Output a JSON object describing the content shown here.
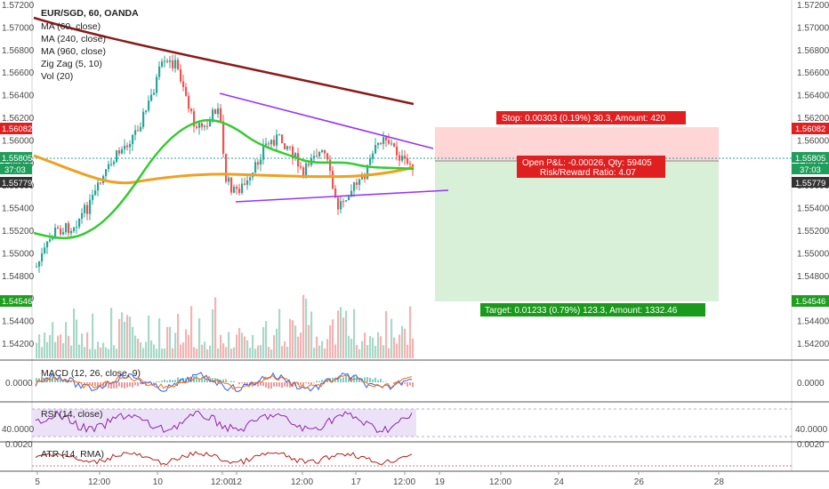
{
  "legend": {
    "title": "EUR/SGD, 60, OANDA",
    "items": [
      "MA (60, close)",
      "MA (240, close)",
      "MA (960, close)",
      "Zig Zag (5, 10)",
      "Vol (20)"
    ]
  },
  "price_axis": {
    "ticks": [
      "1.57200",
      "1.57000",
      "1.56800",
      "1.56600",
      "1.56400",
      "1.56200",
      "1.56000",
      "1.55800",
      "1.55600",
      "1.55400",
      "1.55200",
      "1.55000",
      "1.54800",
      "1.54600",
      "1.54400",
      "1.54200"
    ],
    "tag_left_top": "1.56082",
    "tag_left_mid1": "1.55805",
    "tag_left_mid2": "37:03",
    "tag_left_mid3": "1.55779",
    "tag_left_bottom": "1.54546",
    "tag_right_top": "1.56082",
    "tag_right_mid1": "1.55805",
    "tag_right_mid2": "37:03",
    "tag_right_mid3": "1.55779",
    "tag_right_bottom": "1.54546"
  },
  "position": {
    "stop": "Stop: 0.00303 (0.19%) 30.3, Amount: 420",
    "pl_line1": "Open P&L: -0.00026, Qty: 59405",
    "pl_line2": "Risk/Reward Ratio: 4.07",
    "target": "Target: 0.01233 (0.79%) 123.3, Amount: 1332.46"
  },
  "panes": {
    "macd": {
      "label": "MACD (12, 26, close, 9)",
      "left": "0.0000",
      "right": "0.0000"
    },
    "rsi": {
      "label": "RSI (14, close)",
      "left": "40.0000",
      "right": "40.0000"
    },
    "atr": {
      "label": "ATR (14, RMA)",
      "left": "0.0020",
      "right": "0.0020"
    }
  },
  "time_axis": [
    "5",
    "12:00",
    "10",
    "12:00",
    "12",
    "12:00",
    "17",
    "12:00",
    "19",
    "12:00",
    "24",
    "26",
    "28"
  ],
  "colors": {
    "ma60": "#33cc33",
    "ma240": "#f0a020",
    "ma960": "#8b1a1a",
    "triangle": "#9933ff",
    "up": "#26a69a",
    "down": "#ef5350",
    "stop_zone": "#ffd6d6",
    "target_zone": "#d8f0d8"
  }
}
